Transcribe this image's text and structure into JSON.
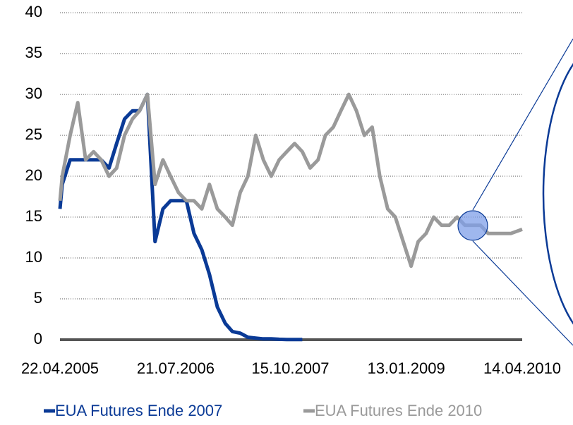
{
  "chart_data": {
    "type": "line",
    "x": [
      "22.04.2005",
      "01.05.2005",
      "01.06.2005",
      "01.07.2005",
      "01.08.2005",
      "01.09.2005",
      "01.10.2005",
      "01.11.2005",
      "01.12.2005",
      "01.01.2006",
      "01.02.2006",
      "01.03.2006",
      "01.04.2006",
      "01.05.2006",
      "01.06.2006",
      "01.07.2006",
      "01.08.2006",
      "01.09.2006",
      "01.10.2006",
      "01.11.2006",
      "01.12.2006",
      "01.01.2007",
      "01.02.2007",
      "01.03.2007",
      "01.04.2007",
      "01.05.2007",
      "01.06.2007",
      "01.07.2007",
      "01.08.2007",
      "01.09.2007",
      "01.10.2007",
      "01.11.2007",
      "01.12.2007",
      "01.01.2008",
      "01.02.2008",
      "01.03.2008",
      "01.04.2008",
      "01.05.2008",
      "01.06.2008",
      "01.07.2008",
      "01.08.2008",
      "01.09.2008",
      "01.10.2008",
      "01.11.2008",
      "01.12.2008",
      "01.01.2009",
      "01.02.2009",
      "01.03.2009",
      "01.04.2009",
      "01.05.2009",
      "01.06.2009",
      "01.07.2009",
      "01.08.2009",
      "01.09.2009",
      "01.10.2009",
      "01.11.2009",
      "01.12.2009",
      "01.01.2010",
      "01.02.2010",
      "01.03.2010",
      "14.04.2010"
    ],
    "series": [
      {
        "name": "EUA Futures Ende 2007",
        "color": "#0a3a96",
        "values": [
          16,
          19,
          22,
          22,
          22,
          22,
          22,
          21,
          24,
          27,
          28,
          28,
          30,
          12,
          16,
          17,
          17,
          17,
          13,
          11,
          8,
          4,
          2,
          1,
          0.8,
          0.3,
          0.2,
          0.1,
          0.1,
          0.05,
          0.03,
          0.02,
          0.02,
          null,
          null,
          null,
          null,
          null,
          null,
          null,
          null,
          null,
          null,
          null,
          null,
          null,
          null,
          null,
          null,
          null,
          null,
          null,
          null,
          null,
          null,
          null,
          null,
          null,
          null,
          null,
          null
        ]
      },
      {
        "name": "EUA Futures Ende 2010",
        "color": "#9a9a9a",
        "values": [
          17,
          20,
          25,
          29,
          22,
          23,
          22,
          20,
          21,
          25,
          27,
          28,
          30,
          19,
          22,
          20,
          18,
          17,
          17,
          16,
          19,
          16,
          15,
          14,
          18,
          20,
          25,
          22,
          20,
          22,
          23,
          24,
          23,
          21,
          22,
          25,
          26,
          28,
          30,
          28,
          25,
          26,
          20,
          16,
          15,
          12,
          9,
          12,
          13,
          15,
          14,
          14,
          15,
          14,
          14,
          14,
          13,
          13,
          13,
          13,
          13.5
        ]
      }
    ],
    "xlim": [
      "22.04.2005",
      "14.04.2010"
    ],
    "xticks": [
      "22.04.2005",
      "21.07.2006",
      "15.10.2007",
      "13.01.2009",
      "14.04.2010"
    ],
    "ylim": [
      0,
      40
    ],
    "yticks": [
      0,
      5,
      10,
      15,
      20,
      25,
      30,
      35,
      40
    ],
    "grid": true,
    "legend": "bottom"
  }
}
